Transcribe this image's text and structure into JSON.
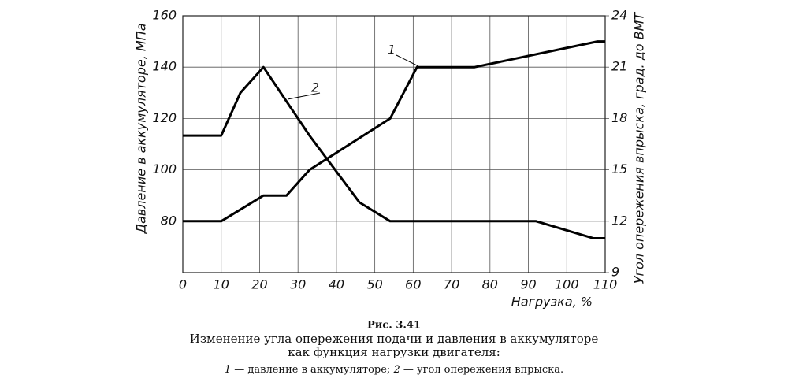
{
  "chart_data": {
    "type": "line",
    "xlabel": "Нагрузка, %",
    "ylabel": "Давление в аккумуляторе, МПа",
    "y2label": "Угол опережения впрыска, град. до ВМТ",
    "xlim": [
      0,
      110
    ],
    "xticks": [
      0,
      10,
      20,
      30,
      40,
      50,
      60,
      70,
      80,
      90,
      100,
      110
    ],
    "ylim": [
      60,
      160
    ],
    "yticks": [
      80,
      100,
      120,
      140,
      160
    ],
    "y2lim": [
      9,
      24
    ],
    "y2ticks": [
      9,
      12,
      15,
      18,
      21,
      24
    ],
    "grid": true,
    "series": [
      {
        "name": "1",
        "color": "#000000",
        "axis": "y",
        "x": [
          0,
          10,
          21,
          27,
          33,
          54,
          61,
          76,
          108,
          110
        ],
        "values": [
          80,
          80,
          90,
          90,
          100,
          120,
          140,
          140,
          150,
          150
        ]
      },
      {
        "name": "2",
        "color": "#000000",
        "axis": "y2",
        "x": [
          0,
          10,
          12,
          15,
          21,
          33,
          46,
          54,
          92,
          107,
          110
        ],
        "values": [
          17,
          17,
          18,
          19.5,
          21,
          17,
          13.1,
          12,
          12,
          11,
          11
        ]
      }
    ]
  },
  "caption": {
    "figure": "Рис. 3.41",
    "lines": [
      "Изменение угла опережения подачи и давления в аккумуляторе",
      "как функция нагрузки двигателя:"
    ],
    "legend": [
      {
        "label": "1",
        "text": " — давление в аккумуляторе; "
      },
      {
        "label": "2",
        "text": " — угол опережения впрыска."
      }
    ]
  }
}
